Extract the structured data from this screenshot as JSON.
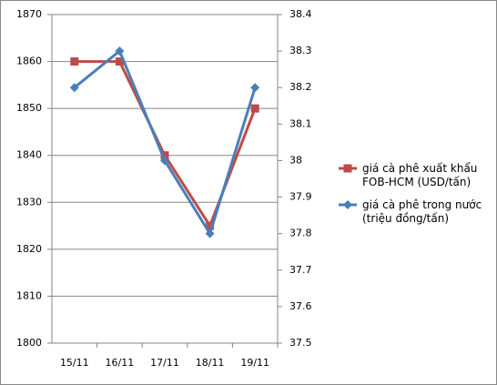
{
  "chart_data": {
    "type": "line",
    "categories": [
      "15/11",
      "16/11",
      "17/11",
      "18/11",
      "19/11"
    ],
    "series": [
      {
        "name": "giá cà phê xuất khẩu FOB-HCM (USD/tấn)",
        "color": "#be4b48",
        "marker": "square",
        "values": [
          1860,
          1860,
          1840,
          1825,
          1850
        ]
      },
      {
        "name": "giá cà phê trong nước (triệu đồng/tấn)",
        "color": "#4a7ebb",
        "marker": "diamond",
        "axis": "y2",
        "values": [
          38.2,
          38.3,
          38.0,
          37.8,
          38.2
        ]
      }
    ],
    "ylim": [
      1800,
      1870
    ],
    "yticks": [
      1800,
      1810,
      1820,
      1830,
      1840,
      1850,
      1860,
      1870
    ],
    "y2lim": [
      37.5,
      38.4
    ],
    "y2ticks": [
      37.5,
      37.6,
      37.7,
      37.8,
      37.9,
      38,
      38.1,
      38.2,
      38.3,
      38.4
    ],
    "grid": true,
    "legend": "right"
  }
}
